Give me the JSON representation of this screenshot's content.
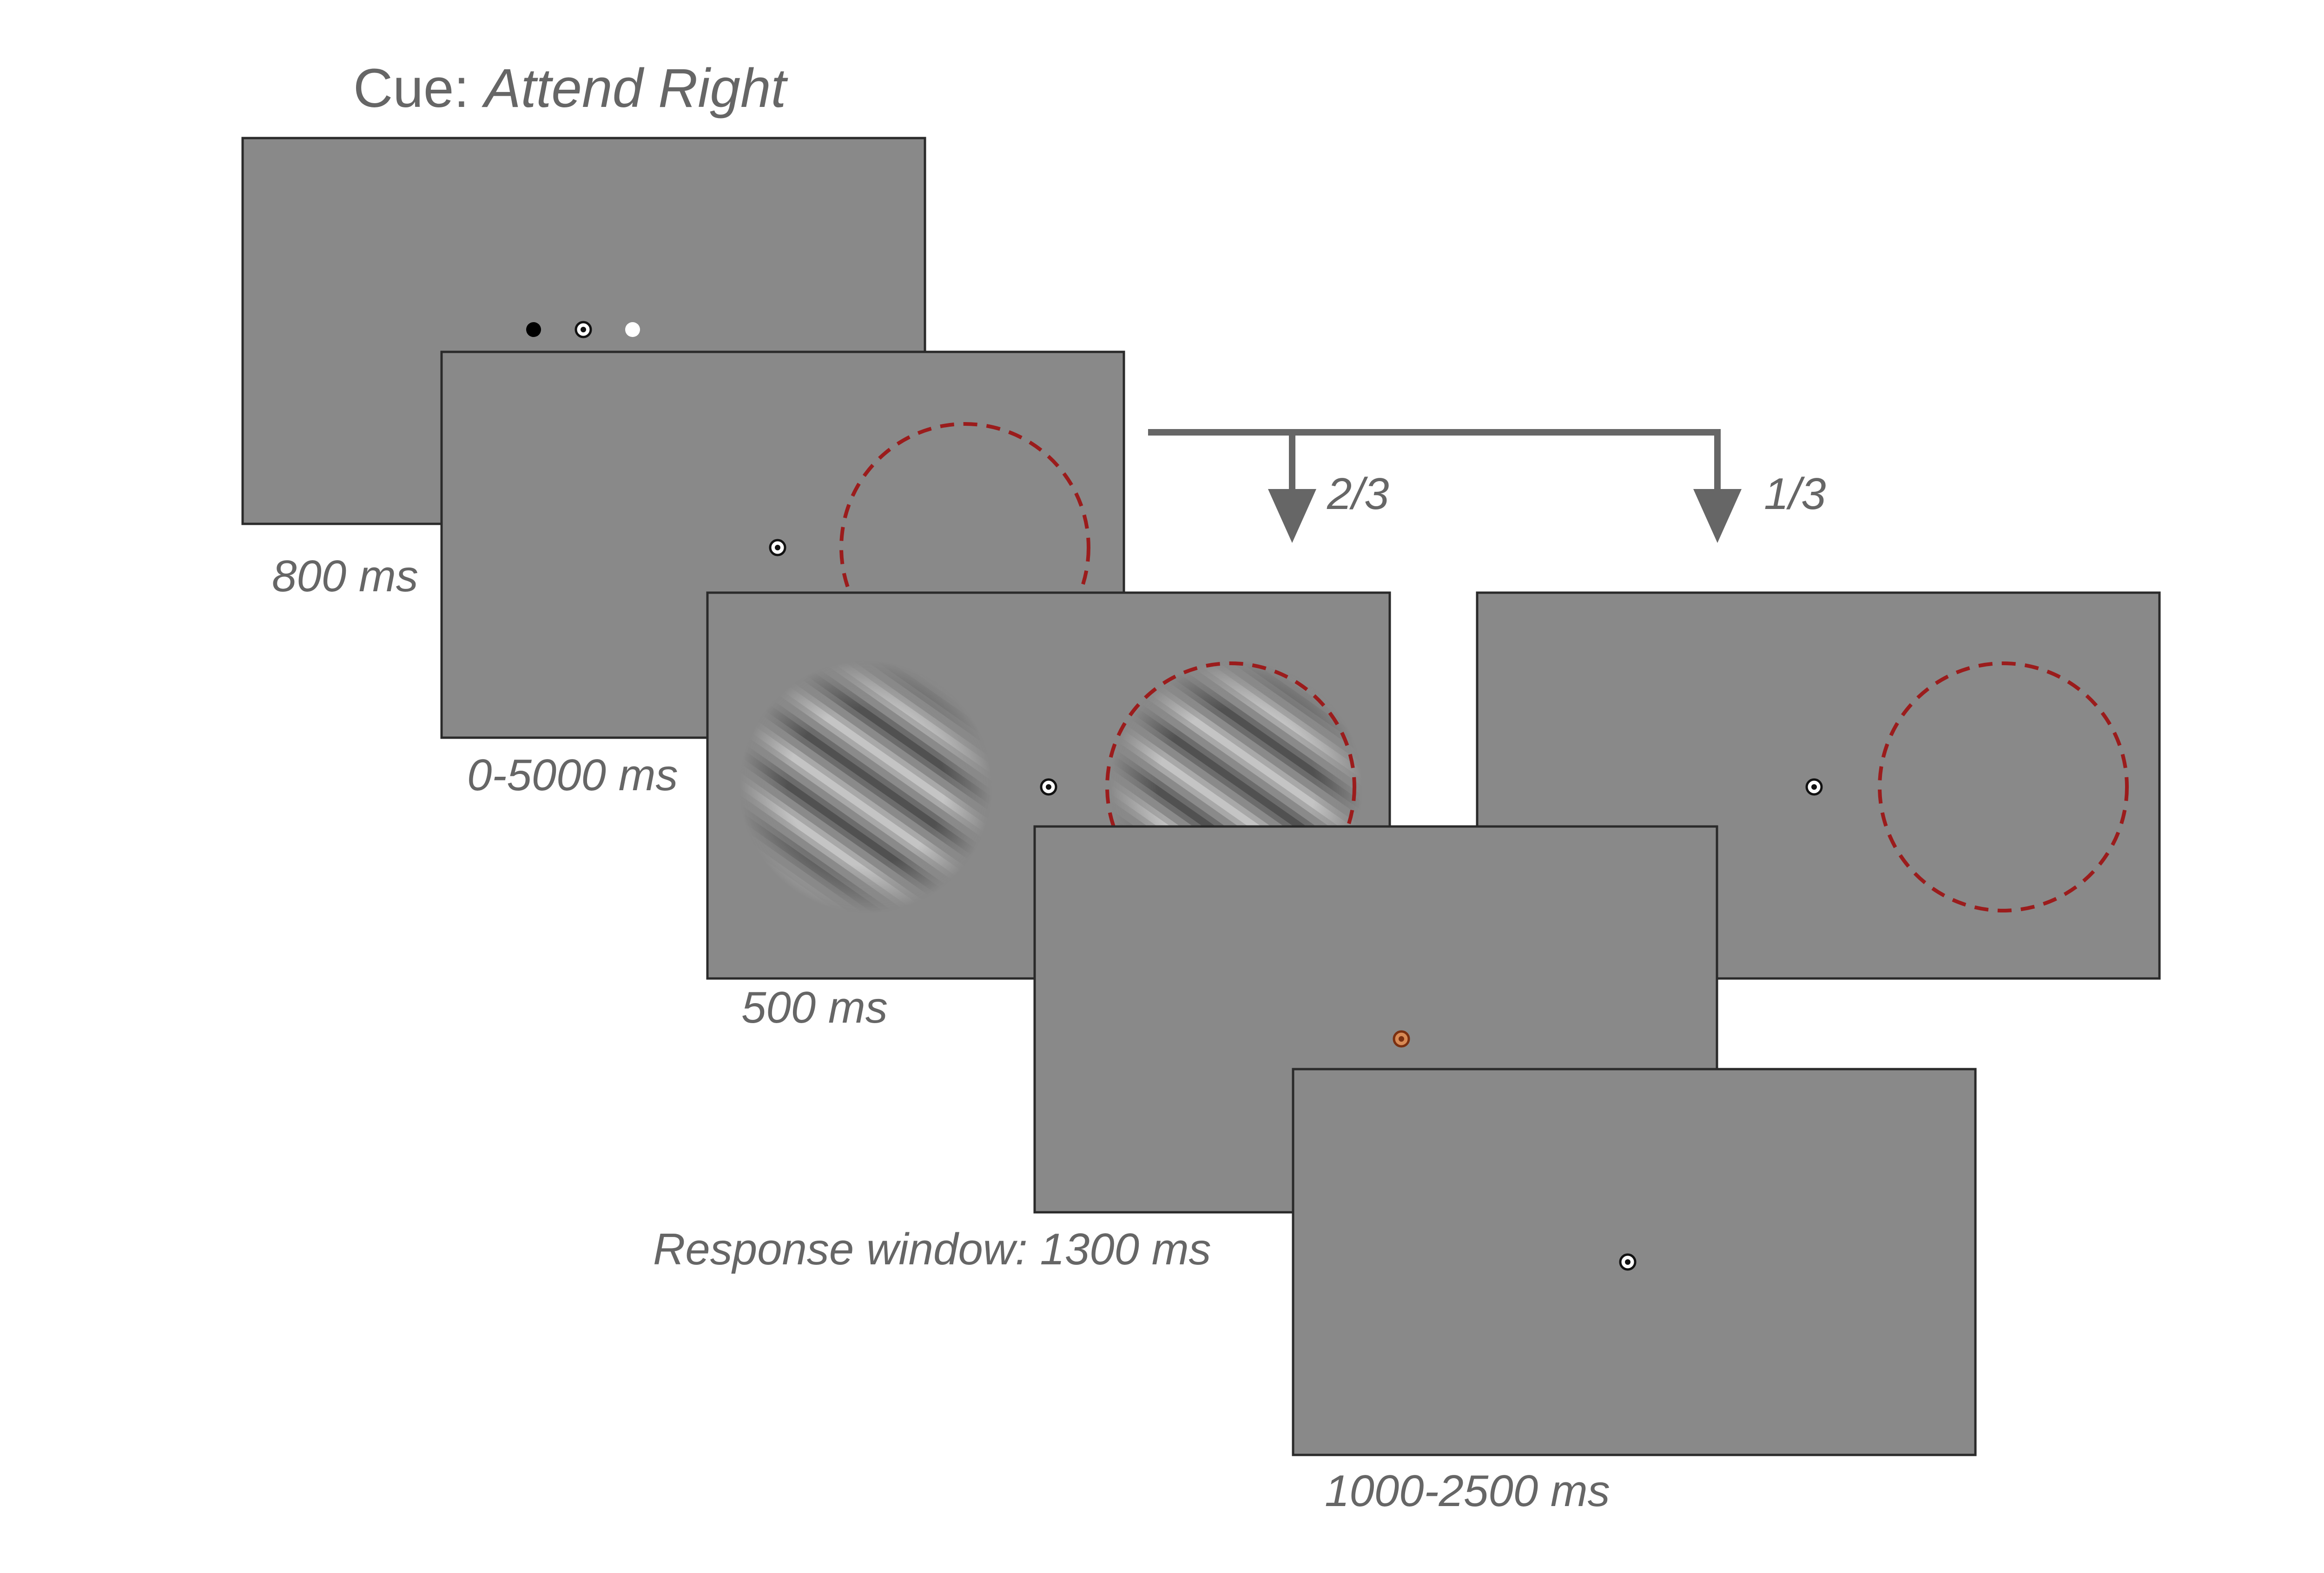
{
  "cue": {
    "prefix": "Cue: ",
    "condition": "Attend Right"
  },
  "durations": {
    "cue_screen": "800 ms",
    "pre_stimulus": "0-5000 ms",
    "stimulus": "500 ms",
    "response": "Response window: 1300 ms",
    "iti": "1000-2500 ms"
  },
  "branches": {
    "stimulus_probability": "2/3",
    "catch_probability": "1/3"
  },
  "colors": {
    "background": "#ffffff",
    "screen": "#898989",
    "screen_border": "#2a2a2a",
    "text": "#666666",
    "arrow": "#666666",
    "attention_circle": "#9b1c1c",
    "cue_left_dot": "#000000",
    "cue_right_dot": "#ffffff",
    "response_fixation": "#c26a2e"
  },
  "icons": {
    "fixation": "bullseye-fixation-icon",
    "grating": "sinusoidal-grating-icon",
    "arrow": "down-arrow-icon"
  }
}
